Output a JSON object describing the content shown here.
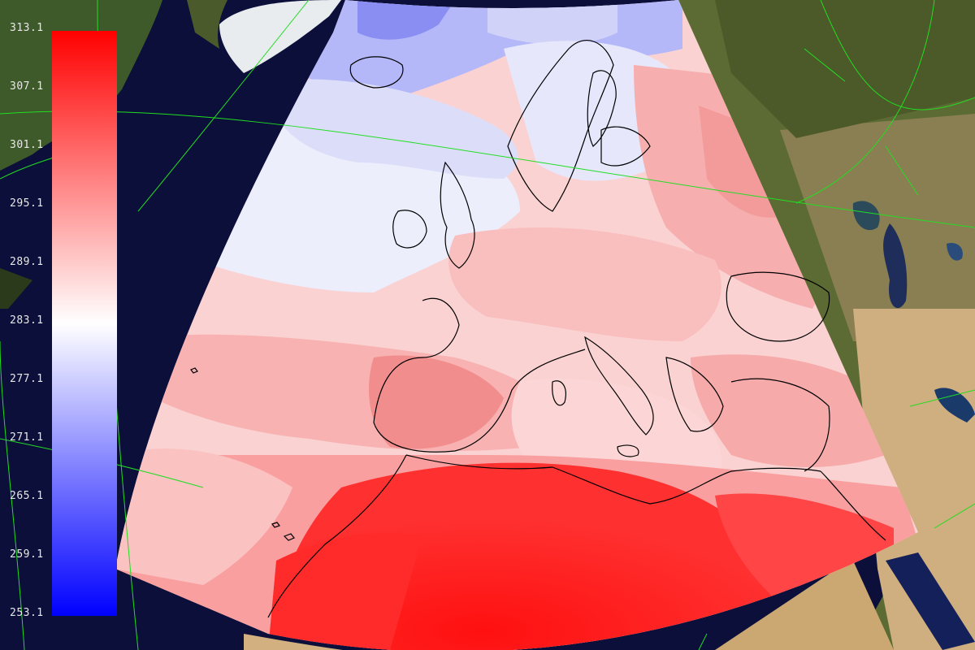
{
  "colorbar": {
    "ticks": [
      "313.1",
      "307.1",
      "301.1",
      "295.1",
      "289.1",
      "283.1",
      "277.1",
      "271.1",
      "265.1",
      "259.1",
      "253.1"
    ],
    "min": 253.1,
    "max": 313.1,
    "colors": {
      "low": "#0000ff",
      "mid": "#ffffff",
      "high": "#ff0000"
    }
  },
  "map": {
    "background_color": "#0b0f3a",
    "gridline_color": "#22dd22",
    "coastline_color": "#000000",
    "land_colors": {
      "forest": "#4a5a2a",
      "steppe": "#8a7a4a",
      "desert": "#d4b48a"
    }
  }
}
